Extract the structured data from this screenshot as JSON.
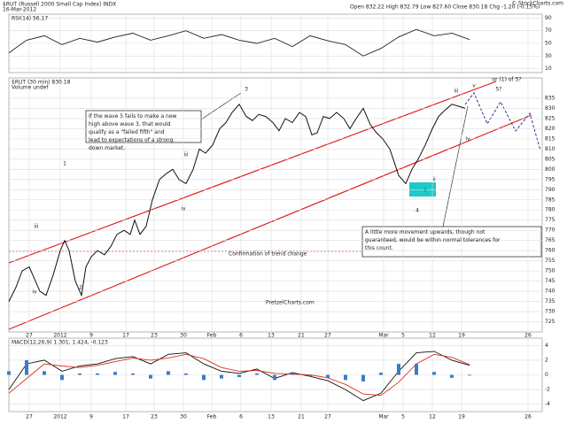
{
  "header": {
    "symbol": "$RUT (Russell 2000 Small Cap Index) INDX",
    "date": "16-Mar-2012",
    "quote": "Open 832.22  High 832.79  Low 827.60  Close 830.18  Chg -1.20 (-0.15%)",
    "credit": "© StockCharts.com"
  },
  "chart_data": [
    {
      "type": "line",
      "name": "RSI(14) 56.17",
      "ylim": [
        4,
        96
      ],
      "yticks": [
        10,
        30,
        50,
        70,
        90
      ],
      "xlim": [
        0,
        301
      ],
      "x": [
        0,
        10,
        20,
        30,
        40,
        50,
        60,
        70,
        80,
        90,
        100,
        110,
        120,
        130,
        140,
        150,
        160,
        170,
        180,
        190,
        200,
        210,
        220,
        230,
        240,
        250,
        260
      ],
      "series": [
        {
          "name": "RSI",
          "color": "#222",
          "values": [
            35,
            55,
            62,
            48,
            58,
            52,
            60,
            66,
            55,
            62,
            70,
            58,
            64,
            55,
            50,
            58,
            45,
            62,
            54,
            48,
            30,
            42,
            60,
            72,
            62,
            66,
            56
          ]
        }
      ]
    },
    {
      "type": "line",
      "title": "$RUT (30 min) 830.18",
      "subtitle": "Volume undef",
      "ylim": [
        720,
        845
      ],
      "yticks": [
        725,
        730,
        735,
        740,
        745,
        750,
        755,
        760,
        765,
        770,
        775,
        780,
        785,
        790,
        795,
        800,
        805,
        810,
        815,
        820,
        825,
        830,
        835
      ],
      "xlim": [
        0,
        301
      ],
      "xticks": [
        {
          "value": 11.5,
          "label": "27"
        },
        {
          "value": 29,
          "label": "2012"
        },
        {
          "value": 46.5,
          "label": "9"
        },
        {
          "value": 66,
          "label": "17"
        },
        {
          "value": 82,
          "label": "23"
        },
        {
          "value": 98.5,
          "label": "30"
        },
        {
          "value": 114.5,
          "label": "Feb"
        },
        {
          "value": 131,
          "label": "6"
        },
        {
          "value": 148,
          "label": "13"
        },
        {
          "value": 165,
          "label": "21"
        },
        {
          "value": 180,
          "label": "27"
        },
        {
          "value": 211.5,
          "label": "Mar"
        },
        {
          "value": 222.5,
          "label": "5"
        },
        {
          "value": 239,
          "label": "12"
        },
        {
          "value": 255.5,
          "label": "19"
        },
        {
          "value": 293,
          "label": "26"
        }
      ],
      "grid": true,
      "x": [
        0,
        4,
        7.5,
        11.5,
        15,
        17.5,
        21,
        25,
        29,
        31.5,
        34,
        37.5,
        41,
        43.5,
        46.5,
        50,
        54,
        57.5,
        61,
        65,
        68.5,
        71,
        74,
        77.5,
        81,
        85,
        89,
        92.5,
        96,
        100,
        104,
        107.5,
        111,
        115,
        119,
        122.5,
        126,
        130,
        134,
        137.5,
        141,
        145,
        149,
        152.5,
        156,
        160,
        164,
        167.5,
        171,
        174,
        177.5,
        181,
        185,
        189,
        192.5,
        196,
        200,
        204,
        207.5,
        211,
        215,
        220,
        224,
        227.5,
        231,
        235,
        239,
        242.5,
        246,
        250,
        254,
        257.5
      ],
      "series": [
        {
          "name": "Close",
          "color": "#111",
          "values": [
            735,
            742,
            750,
            752,
            745,
            740,
            738,
            748,
            760,
            765,
            760,
            745,
            738,
            752,
            757,
            760,
            758,
            762,
            768,
            770,
            768,
            775,
            768,
            772,
            785,
            795,
            798,
            800,
            795,
            793,
            800,
            810,
            808,
            812,
            820,
            823,
            828,
            832,
            826,
            824,
            827,
            826,
            823,
            819,
            825,
            823,
            828,
            826,
            817,
            818,
            826,
            825,
            828,
            825,
            820,
            825,
            830,
            822,
            818,
            815,
            810,
            797,
            793,
            800,
            805,
            812,
            820,
            826,
            829,
            832,
            831,
            830
          ]
        }
      ],
      "annotations": [
        "If the wave 5 fails to make a new high above wave 3, that would qualify as a \"failed fifth\" and lead to expectations of a strong down market.",
        "A little more movement upwards, though not guaranteed, would be within normal tolerances for this count.",
        "or (1) of 5?",
        "5?",
        "1",
        "2",
        "3",
        "4",
        "iii",
        "iv",
        "iii",
        "iv",
        "v",
        "iii",
        "iv",
        "i",
        "ii",
        "Confirmation of trend change",
        "PretzelCharts.com"
      ]
    },
    {
      "type": "macd",
      "name": "MACD(12,26,9) 1.301, 1.424, -0.123",
      "ylim": [
        -5,
        5
      ],
      "yticks": [
        -4,
        -2,
        0,
        2,
        4
      ],
      "xlim": [
        0,
        301
      ],
      "x": [
        0,
        10,
        20,
        30,
        40,
        50,
        60,
        70,
        80,
        90,
        100,
        110,
        120,
        130,
        140,
        150,
        160,
        170,
        180,
        190,
        200,
        210,
        220,
        230,
        240,
        250,
        260
      ],
      "series": [
        {
          "name": "MACD",
          "color": "#111",
          "values": [
            -2,
            1.5,
            2,
            0.5,
            1.2,
            1.5,
            2.2,
            2.5,
            1.5,
            2.8,
            3,
            1.5,
            0.5,
            0.2,
            0.8,
            -0.5,
            0.3,
            -0.2,
            -0.8,
            -2,
            -3.5,
            -2.5,
            0.5,
            3,
            3.2,
            2,
            1.3
          ]
        },
        {
          "name": "Signal",
          "color": "#d9301e",
          "values": [
            -2.5,
            -0.5,
            1.5,
            1.2,
            1,
            1.3,
            1.8,
            2.3,
            2,
            2.3,
            2.8,
            2.2,
            1,
            0.5,
            0.6,
            0.2,
            0.1,
            0,
            -0.4,
            -1.3,
            -2.6,
            -2.8,
            -1,
            1.5,
            2.8,
            2.4,
            1.4
          ]
        },
        {
          "name": "Histogram",
          "color": "#3a7ec7",
          "values": [
            0.5,
            2,
            0.5,
            -0.7,
            0.2,
            0.2,
            0.4,
            0.2,
            -0.5,
            0.5,
            0.2,
            -0.7,
            -0.5,
            -0.3,
            0.2,
            -0.7,
            0.2,
            -0.2,
            -0.4,
            -0.7,
            -0.9,
            0.3,
            1.5,
            1.5,
            0.4,
            -0.4,
            -0.1
          ]
        }
      ]
    }
  ]
}
